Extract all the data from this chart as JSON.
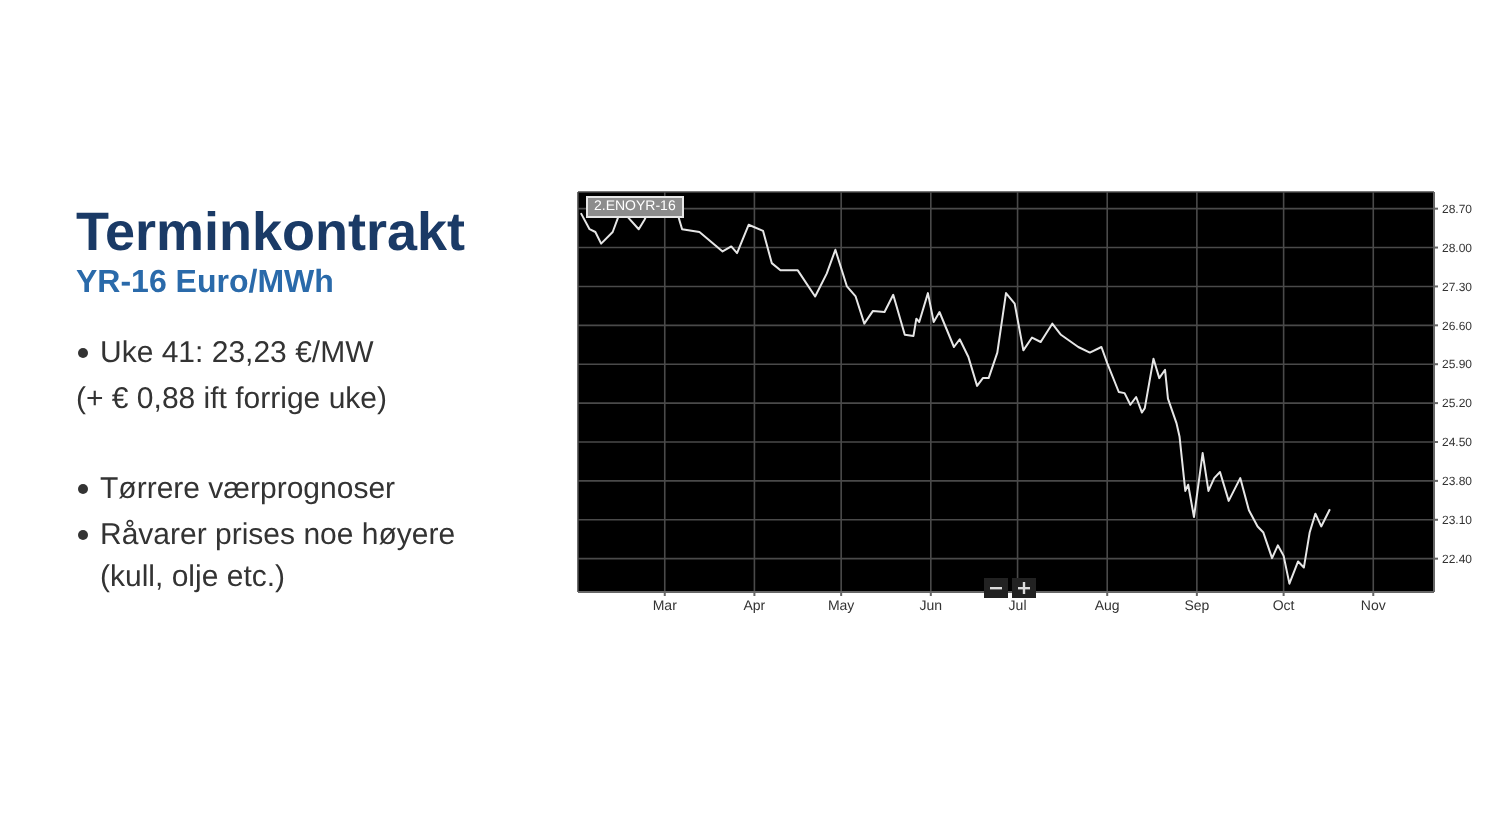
{
  "chart_data": {
    "type": "line",
    "title": "Terminkontrakt",
    "subtitle": "YR-16 Euro/MWh",
    "annotations": [
      "Uke 41: 23,23 €/MW",
      "(+ € 0,88 ift forrige uke)",
      "Tørrere værprognoser",
      "Råvarer prises noe høyere (kull, olje etc.)"
    ],
    "x": [
      "--01-31",
      "--02-03",
      "--02-05",
      "--02-07",
      "--02-11",
      "--02-13",
      "--02-16",
      "--02-20",
      "--02-22",
      "--02-24",
      "--03-01",
      "--03-05",
      "--03-07",
      "--03-13",
      "--03-21",
      "--03-24",
      "--03-26",
      "--03-30",
      "--04-04",
      "--04-07",
      "--04-10",
      "--04-16",
      "--04-22",
      "--04-26",
      "--04-29",
      "--05-03",
      "--05-06",
      "--05-09",
      "--05-12",
      "--05-16",
      "--05-19",
      "--05-23",
      "--05-26",
      "--05-27",
      "--05-28",
      "--05-31",
      "--06-02",
      "--06-04",
      "--06-09",
      "--06-11",
      "--06-14",
      "--06-17",
      "--06-19",
      "--06-21",
      "--06-24",
      "--06-27",
      "--06-30",
      "--07-03",
      "--07-06",
      "--07-09",
      "--07-13",
      "--07-16",
      "--07-22",
      "--07-26",
      "--07-30",
      "--08-01",
      "--08-05",
      "--08-07",
      "--08-09",
      "--08-11",
      "--08-13",
      "--08-14",
      "--08-17",
      "--08-19",
      "--08-21",
      "--08-22",
      "--08-25",
      "--08-26",
      "--08-28",
      "--08-29",
      "--08-31",
      "--09-03",
      "--09-05",
      "--09-07",
      "--09-09",
      "--09-12",
      "--09-16",
      "--09-19",
      "--09-22",
      "--09-24",
      "--09-27",
      "--09-29",
      "--10-01",
      "--10-03",
      "--10-06",
      "--10-08",
      "--10-10",
      "--10-12",
      "--10-14",
      "--10-17"
    ],
    "series": [
      {
        "name": "2.ENOYR-16",
        "color": "#e6e6e6",
        "values": [
          28.62,
          28.33,
          28.28,
          28.07,
          28.28,
          28.56,
          28.56,
          28.33,
          28.5,
          28.73,
          28.56,
          28.68,
          28.33,
          28.28,
          27.93,
          28.02,
          27.9,
          28.41,
          28.3,
          27.72,
          27.59,
          27.59,
          27.12,
          27.53,
          27.96,
          27.3,
          27.12,
          26.63,
          26.86,
          26.84,
          27.15,
          26.43,
          26.41,
          26.72,
          26.66,
          27.18,
          26.66,
          26.84,
          26.21,
          26.35,
          26.03,
          25.51,
          25.65,
          25.65,
          26.11,
          27.18,
          26.99,
          26.15,
          26.38,
          26.3,
          26.63,
          26.43,
          26.21,
          26.11,
          26.21,
          25.92,
          25.4,
          25.38,
          25.17,
          25.31,
          25.03,
          25.11,
          26.0,
          25.65,
          25.8,
          25.28,
          24.83,
          24.6,
          23.62,
          23.73,
          23.15,
          24.3,
          23.62,
          23.85,
          23.96,
          23.44,
          23.85,
          23.27,
          22.98,
          22.87,
          22.41,
          22.64,
          22.45,
          21.95,
          22.35,
          22.24,
          22.87,
          23.21,
          22.98,
          23.29
        ]
      }
    ],
    "xlim": [
      "--01-30",
      "--11-22"
    ],
    "xticks": [
      {
        "value": "--03-01",
        "label": "Mar"
      },
      {
        "value": "--04-01",
        "label": "Apr"
      },
      {
        "value": "--05-01",
        "label": "May"
      },
      {
        "value": "--06-01",
        "label": "Jun"
      },
      {
        "value": "--07-01",
        "label": "Jul"
      },
      {
        "value": "--08-01",
        "label": "Aug"
      },
      {
        "value": "--09-01",
        "label": "Sep"
      },
      {
        "value": "--10-01",
        "label": "Oct"
      },
      {
        "value": "--11-01",
        "label": "Nov"
      }
    ],
    "ylim": [
      21.8,
      29.0
    ],
    "yticks": [
      {
        "value": 22.4,
        "label": "22.40"
      },
      {
        "value": 23.1,
        "label": "23.10"
      },
      {
        "value": 23.8,
        "label": "23.80"
      },
      {
        "value": 24.5,
        "label": "24.50"
      },
      {
        "value": 25.2,
        "label": "25.20"
      },
      {
        "value": 25.9,
        "label": "25.90"
      },
      {
        "value": 26.6,
        "label": "26.60"
      },
      {
        "value": 27.3,
        "label": "27.30"
      },
      {
        "value": 28.0,
        "label": "28.00"
      },
      {
        "value": 28.7,
        "label": "28.70"
      }
    ],
    "grid": true,
    "legend": "top left",
    "marker": "none",
    "line_style": "solid"
  }
}
